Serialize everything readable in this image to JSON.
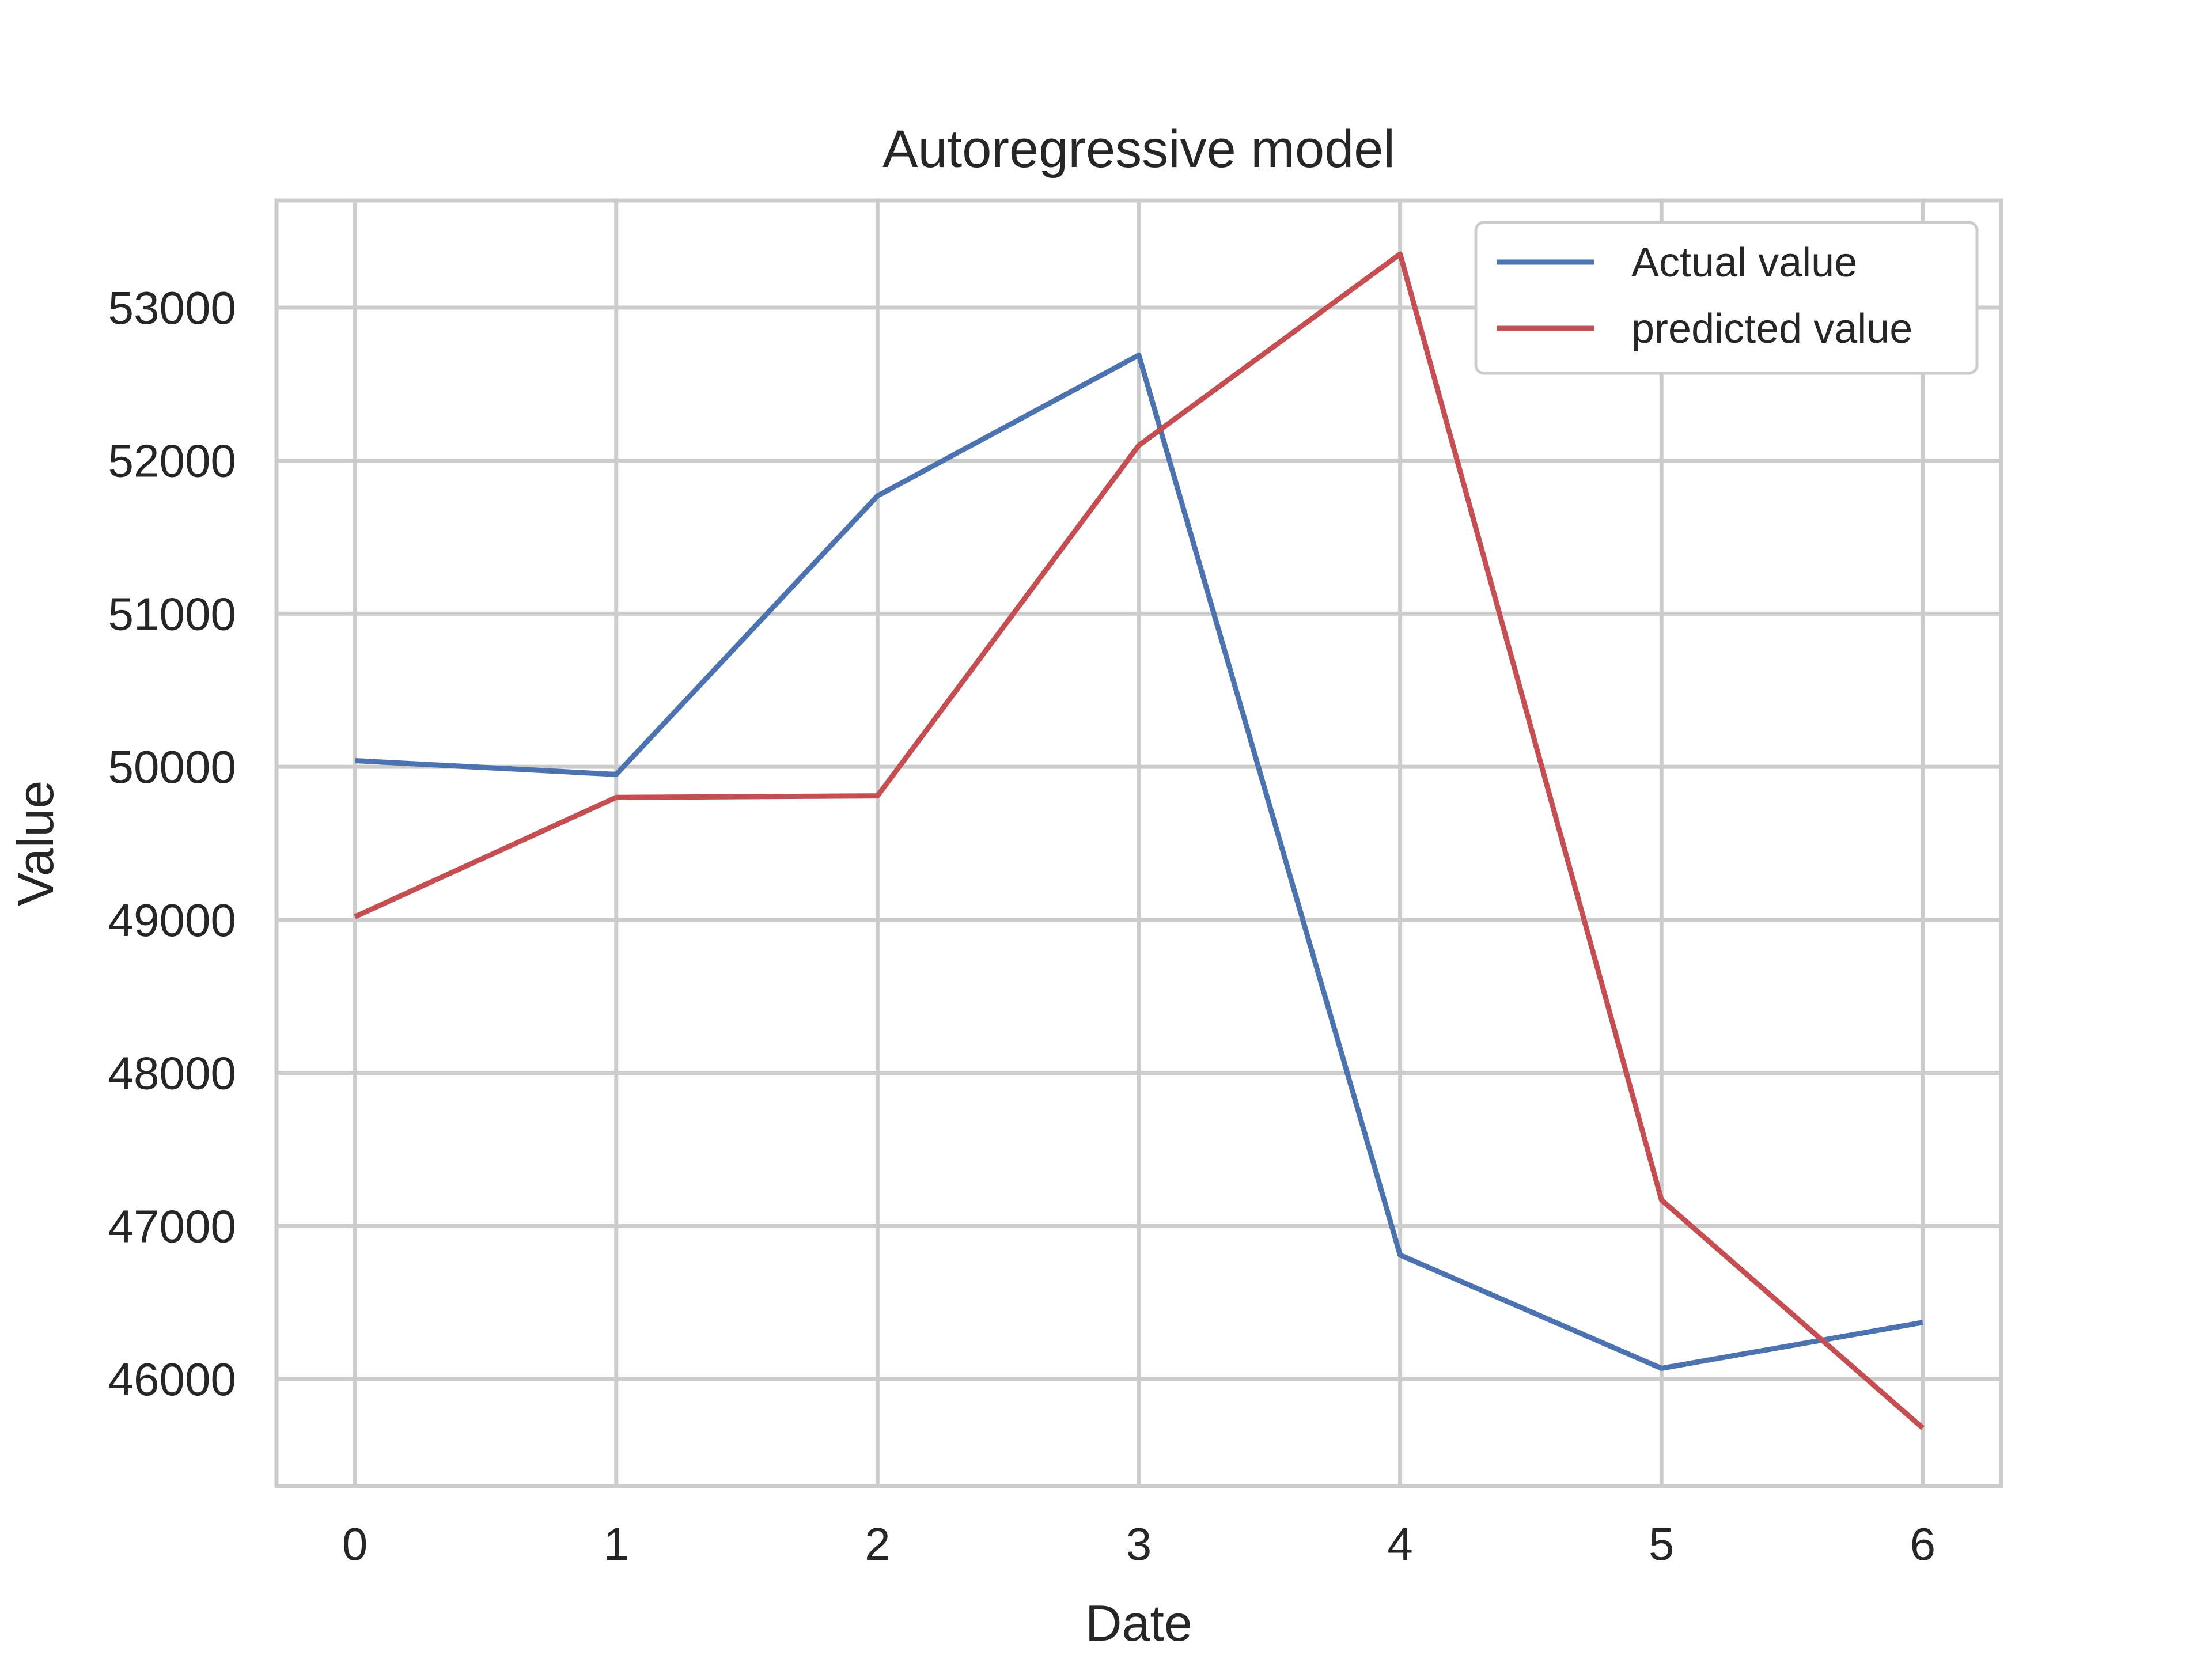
{
  "chart_data": {
    "type": "line",
    "title": "Autoregressive model",
    "xlabel": "Date",
    "ylabel": "Value",
    "x": [
      0,
      1,
      2,
      3,
      4,
      5,
      6
    ],
    "x_ticks": [
      "0",
      "1",
      "2",
      "3",
      "4",
      "5",
      "6"
    ],
    "y_ticks": [
      "46000",
      "47000",
      "48000",
      "49000",
      "50000",
      "51000",
      "52000",
      "53000"
    ],
    "xlim": [
      -0.3,
      6.3
    ],
    "ylim": [
      45300,
      53700
    ],
    "grid": true,
    "legend_position": "top-right",
    "series": [
      {
        "name": "Actual value",
        "color": "#4c72b0",
        "values": [
          50040,
          49950,
          51770,
          52690,
          46810,
          46070,
          46370
        ]
      },
      {
        "name": "predicted value",
        "color": "#c44e52",
        "values": [
          49020,
          49800,
          49810,
          52100,
          53350,
          47170,
          45680
        ]
      }
    ]
  }
}
